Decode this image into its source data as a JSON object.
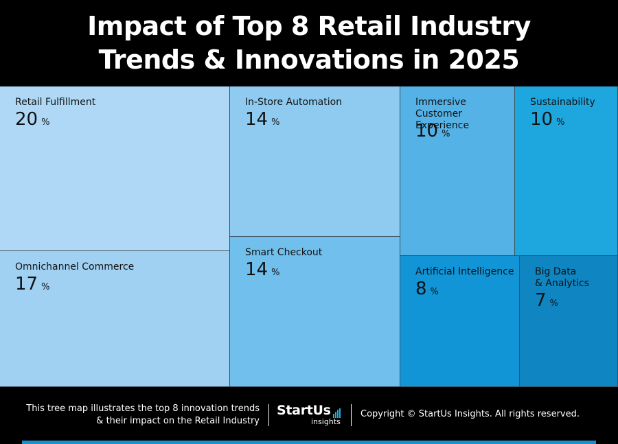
{
  "title_lines": [
    "Impact of Top 8 Retail Industry",
    "Trends & Innovations in 2025"
  ],
  "chart_data": {
    "type": "treemap",
    "title": "Impact of Top 8 Retail Industry Trends & Innovations in 2025",
    "unit": "%",
    "items": [
      {
        "label": "Retail Fulfillment",
        "value": 20,
        "color": "#aed8f5"
      },
      {
        "label": "Omnichannel Commerce",
        "value": 17,
        "color": "#a0d1f2"
      },
      {
        "label": "In-Store Automation",
        "value": 14,
        "color": "#8fcbf0"
      },
      {
        "label": "Smart Checkout",
        "value": 14,
        "color": "#71bfec"
      },
      {
        "label": "Immersive Customer\nExperience",
        "value": 10,
        "color": "#55b2e6"
      },
      {
        "label": "Sustainability",
        "value": 10,
        "color": "#1ea6df"
      },
      {
        "label": "Artificial Intelligence",
        "value": 8,
        "color": "#1195d6"
      },
      {
        "label": "Big Data\n& Analytics",
        "value": 7,
        "color": "#0f86c2"
      }
    ]
  },
  "footer": {
    "description_lines": [
      "This tree map illustrates the top 8 innovation trends",
      "& their impact on the Retail Industry"
    ],
    "logo_main": "StartUs",
    "logo_sub": "insights",
    "copyright": "Copyright © StartUs Insights. All rights reserved."
  },
  "colors": {
    "background": "#000000",
    "accent": "#1a8fd0"
  }
}
